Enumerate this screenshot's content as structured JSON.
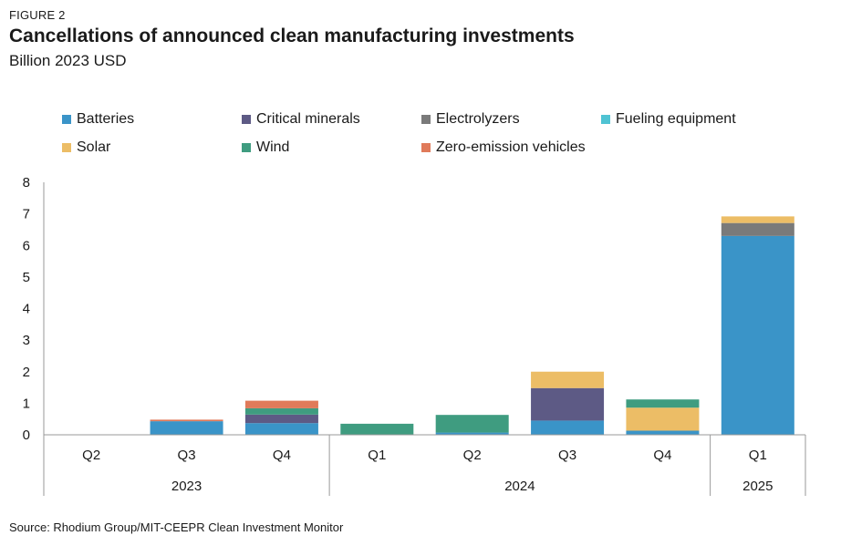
{
  "figure_label": "FIGURE 2",
  "title": "Cancellations of announced clean manufacturing investments",
  "subtitle": "Billion 2023 USD",
  "source": "Source: Rhodium Group/MIT-CEEPR Clean Investment Monitor",
  "chart_data": {
    "type": "bar",
    "stacked": true,
    "categories": [
      "Q2",
      "Q3",
      "Q4",
      "Q1",
      "Q2",
      "Q3",
      "Q4",
      "Q1"
    ],
    "category_groups": [
      {
        "label": "2023",
        "categories": [
          "Q2",
          "Q3",
          "Q4"
        ]
      },
      {
        "label": "2024",
        "categories": [
          "Q1",
          "Q2",
          "Q3",
          "Q4"
        ]
      },
      {
        "label": "2025",
        "categories": [
          "Q1"
        ]
      }
    ],
    "series": [
      {
        "name": "Batteries",
        "color": "#3a94c8",
        "values": [
          0,
          0.43,
          0.37,
          0,
          0.07,
          0.45,
          0.13,
          6.3
        ]
      },
      {
        "name": "Critical minerals",
        "color": "#5d5a85",
        "values": [
          0,
          0,
          0.27,
          0,
          0,
          1.03,
          0,
          0
        ]
      },
      {
        "name": "Electrolyzers",
        "color": "#7a7a7a",
        "values": [
          0,
          0,
          0,
          0,
          0,
          0,
          0,
          0.41
        ]
      },
      {
        "name": "Fueling equipment",
        "color": "#4fc3d3",
        "values": [
          0,
          0,
          0,
          0,
          0,
          0,
          0,
          0
        ]
      },
      {
        "name": "Solar",
        "color": "#ecbd66",
        "values": [
          0,
          0,
          0,
          0,
          0,
          0.52,
          0.73,
          0.21
        ]
      },
      {
        "name": "Wind",
        "color": "#3f9c80",
        "values": [
          0,
          0,
          0.2,
          0.35,
          0.56,
          0,
          0.26,
          0
        ]
      },
      {
        "name": "Zero-emission vehicles",
        "color": "#e07a5a",
        "values": [
          0,
          0.05,
          0.24,
          0,
          0,
          0,
          0,
          0
        ]
      }
    ],
    "ylim": [
      0,
      8
    ],
    "yticks": [
      "0",
      "1",
      "2",
      "3",
      "4",
      "5",
      "6",
      "7",
      "8"
    ],
    "legend_position": "top",
    "grid": false
  }
}
